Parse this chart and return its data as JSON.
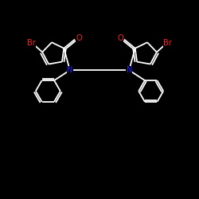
{
  "bg_color": "#000000",
  "line_color": "#ffffff",
  "atom_colors": {
    "Br": "#ff2222",
    "O": "#ff2222",
    "N": "#2222ff",
    "C": "#ffffff"
  },
  "figsize": [
    2.5,
    2.5
  ],
  "dpi": 100,
  "xlim": [
    0,
    10
  ],
  "ylim": [
    0,
    10
  ]
}
